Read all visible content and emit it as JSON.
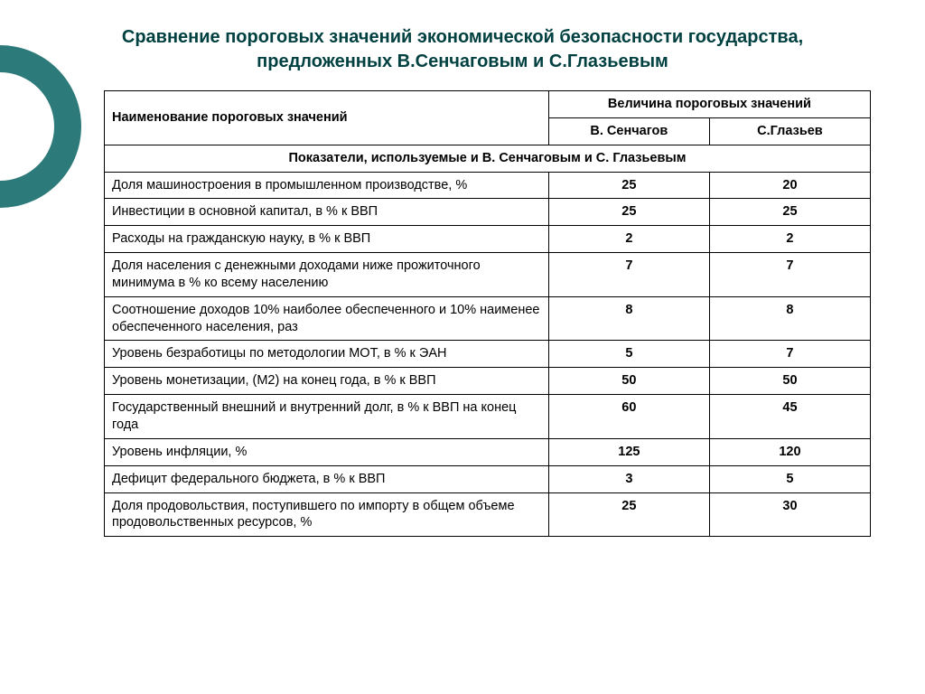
{
  "title": "Сравнение пороговых значений экономической безопасности государства, предложенных В.Сенчаговым и С.Глазьевым",
  "table": {
    "header_name": "Наименование пороговых значений",
    "header_values": "Величина пороговых значений",
    "col_a": "В. Сенчагов",
    "col_b": "С.Глазьев",
    "section_title": "Показатели, используемые и В. Сенчаговым и С. Глазьевым",
    "columns_widths": {
      "name": "58%",
      "val": "21%"
    },
    "rows": [
      {
        "name": "Доля машиностроения в промышленном производстве, %",
        "a": "25",
        "b": "20"
      },
      {
        "name": "Инвестиции в основной капитал, в % к ВВП",
        "a": "25",
        "b": "25"
      },
      {
        "name": "Расходы на гражданскую науку, в % к ВВП",
        "a": "2",
        "b": "2"
      },
      {
        "name": "Доля населения с денежными доходами ниже прожиточного минимума в % ко всему населению",
        "a": "7",
        "b": "7"
      },
      {
        "name": "Соотношение доходов 10% наиболее обеспеченного и 10% наименее обеспеченного населения, раз",
        "a": "8",
        "b": "8"
      },
      {
        "name": "Уровень безработицы по методологии МОТ, в % к ЭАН",
        "a": "5",
        "b": "7"
      },
      {
        "name": "Уровень монетизации, (М2) на конец года, в % к ВВП",
        "a": "50",
        "b": "50"
      },
      {
        "name": "Государственный внешний и внутренний долг, в % к ВВП на конец года",
        "a": "60",
        "b": "45"
      },
      {
        "name": "Уровень инфляции, %",
        "a": "125",
        "b": "120"
      },
      {
        "name": "Дефицит федерального бюджета, в % к ВВП",
        "a": "3",
        "b": "5"
      },
      {
        "name": "Доля продовольствия, поступившего по импорту в общем объеме продовольственных ресурсов, %",
        "a": "25",
        "b": "30"
      }
    ]
  },
  "colors": {
    "title_color": "#004040",
    "circle_color": "#2d7a7a",
    "background": "#ffffff",
    "border": "#000000"
  }
}
